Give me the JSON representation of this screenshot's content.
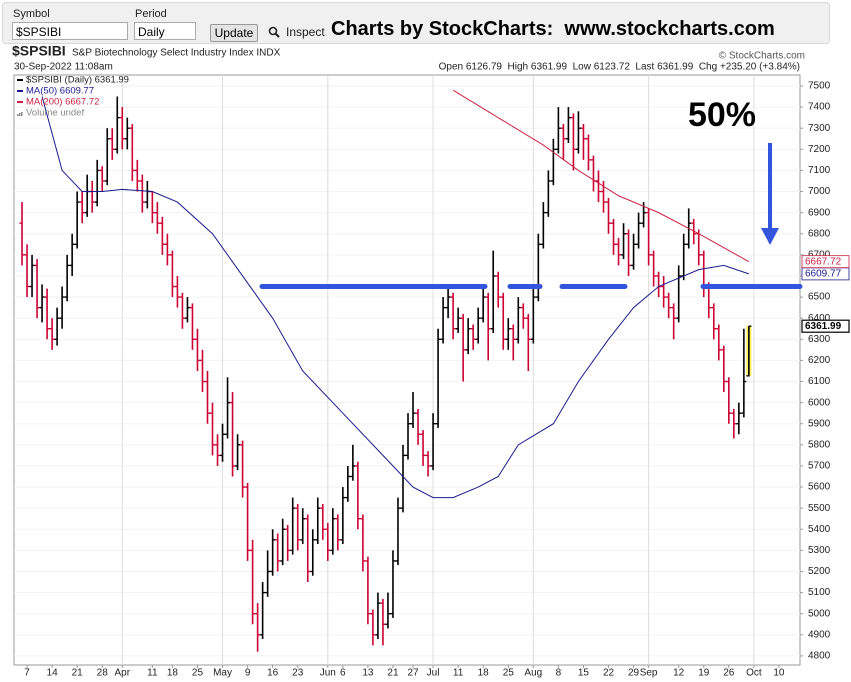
{
  "toolbar": {
    "symbol_label": "Symbol",
    "symbol": "$SPSIBI",
    "period_label": "Period",
    "period": "Daily",
    "update": "Update",
    "inspect": "Inspect",
    "banner": "Charts by StockCharts:  www.stockcharts.com"
  },
  "chart_data": {
    "type": "ohlc",
    "title": "$SPSIBI",
    "subtitle": "S&P Biotechnology Select Industry Index INDX",
    "credit": "© StockCharts.com",
    "date": "30-Sep-2022 11:08am",
    "info": "Open 6126.79  High 6361.99  Low 6123.72  Last 6361.99  Chg +235.20 (+3.84%)",
    "price_name": "$SPSIBI (Daily) 6361.99",
    "volume_label": "Volume undef",
    "up_color": "#000000",
    "down_color": "#cc0033",
    "highlight_color": "#ffee55",
    "grid": true,
    "xlim": [
      -1.6,
      155.2
    ],
    "ylim": [
      4757,
      7552
    ],
    "xticks": [
      {
        "value": 1,
        "label": "7"
      },
      {
        "value": 6,
        "label": "14"
      },
      {
        "value": 11,
        "label": "21"
      },
      {
        "value": 16,
        "label": "28"
      },
      {
        "value": 20,
        "label": "Apr"
      },
      {
        "value": 26,
        "label": "11"
      },
      {
        "value": 30,
        "label": "18"
      },
      {
        "value": 35,
        "label": "25"
      },
      {
        "value": 40,
        "label": "May"
      },
      {
        "value": 45,
        "label": "9"
      },
      {
        "value": 50,
        "label": "16"
      },
      {
        "value": 55,
        "label": "23"
      },
      {
        "value": 61,
        "label": "Jun"
      },
      {
        "value": 64,
        "label": "6"
      },
      {
        "value": 69,
        "label": "13"
      },
      {
        "value": 74,
        "label": "21"
      },
      {
        "value": 78,
        "label": "27"
      },
      {
        "value": 82,
        "label": "Jul"
      },
      {
        "value": 87,
        "label": "11"
      },
      {
        "value": 92,
        "label": "18"
      },
      {
        "value": 97,
        "label": "25"
      },
      {
        "value": 102,
        "label": "Aug"
      },
      {
        "value": 107,
        "label": "8"
      },
      {
        "value": 112,
        "label": "15"
      },
      {
        "value": 117,
        "label": "22"
      },
      {
        "value": 122,
        "label": "29"
      },
      {
        "value": 125,
        "label": "Sep"
      },
      {
        "value": 131,
        "label": "12"
      },
      {
        "value": 136,
        "label": "19"
      },
      {
        "value": 141,
        "label": "26"
      },
      {
        "value": 146,
        "label": "Oct"
      },
      {
        "value": 151,
        "label": "10"
      }
    ],
    "yticks": [
      4800,
      4900,
      5000,
      5100,
      5200,
      5300,
      5400,
      5500,
      5600,
      5700,
      5800,
      5900,
      6000,
      6100,
      6200,
      6300,
      6400,
      6500,
      6600,
      6700,
      6800,
      6900,
      7000,
      7100,
      7200,
      7300,
      7400,
      7500
    ],
    "ohlc": [
      [
        6850,
        6950,
        6650,
        6700
      ],
      [
        6700,
        6750,
        6500,
        6550
      ],
      [
        6550,
        6700,
        6500,
        6650
      ],
      [
        6650,
        6680,
        6400,
        6450
      ],
      [
        6450,
        6560,
        6380,
        6500
      ],
      [
        6500,
        6540,
        6300,
        6350
      ],
      [
        6350,
        6400,
        6250,
        6300
      ],
      [
        6300,
        6450,
        6270,
        6400
      ],
      [
        6400,
        6550,
        6350,
        6500
      ],
      [
        6500,
        6700,
        6480,
        6650
      ],
      [
        6650,
        6800,
        6600,
        6750
      ],
      [
        6750,
        7000,
        6730,
        6950
      ],
      [
        6950,
        7000,
        6850,
        6900
      ],
      [
        6900,
        7080,
        6880,
        7000
      ],
      [
        7000,
        7050,
        6900,
        6950
      ],
      [
        6950,
        7150,
        6930,
        7100
      ],
      [
        7100,
        7120,
        7000,
        7050
      ],
      [
        7050,
        7300,
        7030,
        7250
      ],
      [
        7250,
        7300,
        7150,
        7200
      ],
      [
        7200,
        7450,
        7180,
        7350
      ],
      [
        7350,
        7400,
        7200,
        7250
      ],
      [
        7250,
        7350,
        7200,
        7300
      ],
      [
        7300,
        7320,
        7050,
        7100
      ],
      [
        7100,
        7150,
        7000,
        7050
      ],
      [
        7050,
        7080,
        6900,
        6950
      ],
      [
        6950,
        7050,
        6920,
        7000
      ],
      [
        7000,
        7000,
        6850,
        6900
      ],
      [
        6900,
        6950,
        6800,
        6850
      ],
      [
        6850,
        6880,
        6700,
        6750
      ],
      [
        6750,
        6800,
        6650,
        6700
      ],
      [
        6700,
        6720,
        6500,
        6550
      ],
      [
        6550,
        6600,
        6450,
        6500
      ],
      [
        6500,
        6520,
        6350,
        6400
      ],
      [
        6400,
        6500,
        6380,
        6450
      ],
      [
        6450,
        6470,
        6250,
        6300
      ],
      [
        6300,
        6350,
        6150,
        6200
      ],
      [
        6200,
        6250,
        6050,
        6100
      ],
      [
        6100,
        6150,
        5900,
        5950
      ],
      [
        5950,
        6000,
        5750,
        5800
      ],
      [
        5800,
        5850,
        5700,
        5750
      ],
      [
        5750,
        5900,
        5720,
        5850
      ],
      [
        5850,
        6120,
        5830,
        6000
      ],
      [
        6000,
        6050,
        5650,
        5700
      ],
      [
        5700,
        5850,
        5680,
        5800
      ],
      [
        5800,
        5820,
        5550,
        5600
      ],
      [
        5600,
        5620,
        5250,
        5300
      ],
      [
        5300,
        5350,
        4950,
        5000
      ],
      [
        5000,
        5050,
        4820,
        4900
      ],
      [
        4900,
        5150,
        4880,
        5100
      ],
      [
        5100,
        5300,
        5080,
        5200
      ],
      [
        5200,
        5400,
        5180,
        5350
      ],
      [
        5350,
        5380,
        5200,
        5250
      ],
      [
        5250,
        5450,
        5230,
        5400
      ],
      [
        5400,
        5420,
        5250,
        5300
      ],
      [
        5300,
        5550,
        5280,
        5500
      ],
      [
        5500,
        5520,
        5300,
        5350
      ],
      [
        5350,
        5500,
        5330,
        5450
      ],
      [
        5450,
        5470,
        5150,
        5200
      ],
      [
        5200,
        5400,
        5180,
        5350
      ],
      [
        5350,
        5550,
        5330,
        5500
      ],
      [
        5500,
        5520,
        5350,
        5400
      ],
      [
        5400,
        5430,
        5250,
        5300
      ],
      [
        5300,
        5500,
        5280,
        5450
      ],
      [
        5450,
        5470,
        5300,
        5350
      ],
      [
        5350,
        5600,
        5330,
        5550
      ],
      [
        5550,
        5700,
        5530,
        5650
      ],
      [
        5650,
        5800,
        5630,
        5700
      ],
      [
        5700,
        5720,
        5400,
        5450
      ],
      [
        5450,
        5470,
        5200,
        5250
      ],
      [
        5250,
        5270,
        4950,
        5000
      ],
      [
        5000,
        5020,
        4850,
        4900
      ],
      [
        4900,
        5100,
        4880,
        5050
      ],
      [
        5050,
        5070,
        4850,
        4950
      ],
      [
        4950,
        5100,
        4930,
        5000
      ],
      [
        5000,
        5300,
        4980,
        5250
      ],
      [
        5250,
        5550,
        5230,
        5500
      ],
      [
        5500,
        5800,
        5480,
        5750
      ],
      [
        5750,
        5950,
        5730,
        5900
      ],
      [
        5900,
        6050,
        5880,
        5950
      ],
      [
        5950,
        5970,
        5800,
        5850
      ],
      [
        5850,
        5870,
        5700,
        5750
      ],
      [
        5750,
        5770,
        5650,
        5700
      ],
      [
        5700,
        5950,
        5680,
        5900
      ],
      [
        5900,
        6350,
        5880,
        6300
      ],
      [
        6300,
        6500,
        6280,
        6450
      ],
      [
        6450,
        6560,
        6400,
        6500
      ],
      [
        6500,
        6520,
        6300,
        6350
      ],
      [
        6350,
        6450,
        6330,
        6400
      ],
      [
        6400,
        6420,
        6100,
        6250
      ],
      [
        6250,
        6400,
        6230,
        6350
      ],
      [
        6350,
        6370,
        6250,
        6300
      ],
      [
        6300,
        6450,
        6280,
        6400
      ],
      [
        6400,
        6550,
        6380,
        6500
      ],
      [
        6500,
        6520,
        6200,
        6350
      ],
      [
        6350,
        6720,
        6330,
        6600
      ],
      [
        6600,
        6620,
        6450,
        6500
      ],
      [
        6500,
        6520,
        6250,
        6300
      ],
      [
        6300,
        6400,
        6250,
        6350
      ],
      [
        6350,
        6370,
        6200,
        6300
      ],
      [
        6300,
        6500,
        6280,
        6450
      ],
      [
        6450,
        6470,
        6350,
        6400
      ],
      [
        6400,
        6420,
        6150,
        6300
      ],
      [
        6300,
        6550,
        6280,
        6500
      ],
      [
        6500,
        6800,
        6480,
        6750
      ],
      [
        6750,
        6950,
        6730,
        6900
      ],
      [
        6900,
        7100,
        6880,
        7050
      ],
      [
        7050,
        7250,
        7030,
        7200
      ],
      [
        7200,
        7400,
        7180,
        7300
      ],
      [
        7300,
        7320,
        7150,
        7250
      ],
      [
        7250,
        7400,
        7230,
        7350
      ],
      [
        7350,
        7370,
        7100,
        7200
      ],
      [
        7200,
        7380,
        7180,
        7300
      ],
      [
        7300,
        7320,
        7150,
        7250
      ],
      [
        7250,
        7270,
        7100,
        7150
      ],
      [
        7150,
        7170,
        7000,
        7050
      ],
      [
        7050,
        7100,
        6950,
        7000
      ],
      [
        7000,
        7050,
        6900,
        6950
      ],
      [
        6950,
        6970,
        6800,
        6850
      ],
      [
        6850,
        6870,
        6700,
        6750
      ],
      [
        6750,
        6780,
        6650,
        6700
      ],
      [
        6700,
        6850,
        6680,
        6800
      ],
      [
        6800,
        6820,
        6600,
        6650
      ],
      [
        6650,
        6800,
        6630,
        6750
      ],
      [
        6750,
        6900,
        6730,
        6850
      ],
      [
        6850,
        6950,
        6830,
        6900
      ],
      [
        6900,
        6920,
        6650,
        6700
      ],
      [
        6700,
        6720,
        6550,
        6600
      ],
      [
        6600,
        6620,
        6500,
        6550
      ],
      [
        6550,
        6600,
        6450,
        6500
      ],
      [
        6500,
        6520,
        6400,
        6450
      ],
      [
        6450,
        6470,
        6300,
        6400
      ],
      [
        6400,
        6650,
        6380,
        6600
      ],
      [
        6600,
        6800,
        6580,
        6750
      ],
      [
        6750,
        6920,
        6730,
        6850
      ],
      [
        6850,
        6870,
        6750,
        6800
      ],
      [
        6800,
        6820,
        6650,
        6700
      ],
      [
        6700,
        6720,
        6500,
        6550
      ],
      [
        6550,
        6570,
        6400,
        6450
      ],
      [
        6450,
        6470,
        6300,
        6350
      ],
      [
        6350,
        6370,
        6200,
        6250
      ],
      [
        6250,
        6270,
        6050,
        6100
      ],
      [
        6100,
        6120,
        5900,
        5950
      ],
      [
        5950,
        5970,
        5830,
        5900
      ],
      [
        5900,
        6000,
        5850,
        5950
      ],
      [
        5950,
        6350,
        5930,
        6100
      ],
      [
        6126.79,
        6361.99,
        6123.72,
        6361.99
      ]
    ],
    "series": [
      {
        "name": "MA(50) 6609.77",
        "color": "#1a1a8c",
        "x": [
          4,
          8,
          12,
          16,
          20,
          26,
          31,
          38,
          44,
          50,
          56,
          64,
          72,
          78,
          82,
          86,
          91,
          95,
          99,
          106,
          111,
          117,
          122,
          127,
          135,
          140,
          145
        ],
        "values": [
          7450,
          7100,
          7000,
          7000,
          7010,
          7000,
          6950,
          6800,
          6600,
          6400,
          6150,
          5950,
          5750,
          5600,
          5550,
          5550,
          5600,
          5650,
          5800,
          5900,
          6100,
          6300,
          6450,
          6550,
          6630,
          6650,
          6609.77
        ]
      },
      {
        "name": "MA(200) 6667.72",
        "color": "#cc2244",
        "x": [
          86,
          95,
          104,
          111,
          119,
          127,
          135,
          145
        ],
        "values": [
          7480,
          7350,
          7220,
          7100,
          6980,
          6900,
          6800,
          6667.72
        ]
      }
    ],
    "annotation": {
      "text": "50%",
      "level": 6550,
      "color": "#3355dd"
    }
  }
}
